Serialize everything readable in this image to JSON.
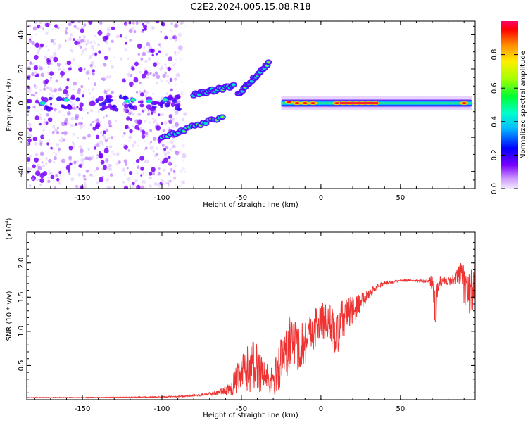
{
  "title": "C2E2.2024.005.15.08.R18",
  "chart_data": [
    {
      "type": "heatmap",
      "xlabel": "Height of straight line (km)",
      "ylabel": "Frequency (Hz)",
      "xlim": [
        -185,
        97
      ],
      "ylim": [
        -50,
        48
      ],
      "xticks": [
        -150,
        -100,
        -50,
        0,
        50
      ],
      "xtick_labels": [
        "-150",
        "-100",
        "-50",
        "0",
        "50"
      ],
      "yticks": [
        -40,
        -20,
        0,
        20,
        40
      ],
      "ytick_labels": [
        "-40",
        "-20",
        "0",
        "20",
        "40"
      ],
      "colorbar": {
        "label": "Normalized spectral amplitude",
        "range": [
          0,
          1
        ],
        "ticks": [
          0.0,
          0.2,
          0.4,
          0.6,
          0.8
        ],
        "tick_labels": [
          "0.0",
          "0.2",
          "0.4",
          "0.6",
          "0.8"
        ]
      },
      "features": [
        {
          "name": "main-ridge",
          "x": [
            -25,
            95
          ],
          "freq": 0,
          "amplitude": "high"
        },
        {
          "name": "lower-branch",
          "x": [
            -100,
            -62
          ],
          "freq": [
            -20,
            -8
          ]
        },
        {
          "name": "upper-branch",
          "x": [
            -80,
            -55
          ],
          "freq": [
            5,
            10
          ]
        },
        {
          "name": "rising-branch",
          "x": [
            -52,
            -33
          ],
          "freq": [
            5,
            23
          ]
        },
        {
          "name": "noise-band",
          "x": [
            -185,
            -85
          ],
          "freq": [
            -50,
            48
          ],
          "amplitude": "low"
        }
      ]
    },
    {
      "type": "line",
      "xlabel": "Height of straight line (km)",
      "ylabel": "SNR (10 * v/v)",
      "yscale_label": "(x10",
      "yscale_exp": "4",
      "yscale_close": ")",
      "xlim": [
        -185,
        97
      ],
      "ylim": [
        0,
        2.45
      ],
      "xticks": [
        -150,
        -100,
        -50,
        0,
        50
      ],
      "xtick_labels": [
        "-150",
        "-100",
        "-50",
        "0",
        "50"
      ],
      "yticks": [
        0.5,
        1.0,
        1.5,
        2.0
      ],
      "ytick_labels": [
        "0.5",
        "1.0",
        "1.5",
        "2.0"
      ],
      "series": [
        {
          "name": "SNR",
          "color": "#ee3333",
          "x": [
            -185,
            -150,
            -120,
            -100,
            -85,
            -75,
            -65,
            -58,
            -54,
            -50,
            -46,
            -42,
            -38,
            -34,
            -30,
            -26,
            -22,
            -18,
            -14,
            -10,
            -6,
            -2,
            2,
            6,
            10,
            14,
            18,
            22,
            26,
            30,
            35,
            40,
            45,
            50,
            55,
            60,
            65,
            68,
            70,
            72,
            74,
            76,
            80,
            84,
            88,
            92,
            95,
            97
          ],
          "y": [
            0.03,
            0.03,
            0.035,
            0.04,
            0.05,
            0.07,
            0.1,
            0.15,
            0.25,
            0.35,
            0.45,
            0.5,
            0.45,
            0.3,
            0.25,
            0.5,
            0.7,
            0.9,
            0.75,
            0.85,
            1.0,
            1.1,
            1.15,
            1.1,
            0.9,
            1.2,
            1.25,
            1.35,
            1.45,
            1.55,
            1.65,
            1.7,
            1.72,
            1.74,
            1.75,
            1.74,
            1.73,
            1.75,
            1.74,
            1.3,
            1.72,
            1.74,
            1.72,
            1.78,
            1.8,
            1.55,
            1.6,
            1.75
          ],
          "noise_amplitude": [
            0.005,
            0.006,
            0.006,
            0.008,
            0.01,
            0.015,
            0.03,
            0.08,
            0.2,
            0.3,
            0.35,
            0.4,
            0.35,
            0.25,
            0.2,
            0.4,
            0.45,
            0.4,
            0.35,
            0.35,
            0.3,
            0.3,
            0.3,
            0.3,
            0.35,
            0.3,
            0.25,
            0.2,
            0.12,
            0.07,
            0.04,
            0.03,
            0.02,
            0.015,
            0.015,
            0.015,
            0.02,
            0.05,
            0.15,
            0.35,
            0.1,
            0.08,
            0.05,
            0.1,
            0.25,
            0.3,
            0.35,
            0.25
          ]
        }
      ]
    }
  ]
}
